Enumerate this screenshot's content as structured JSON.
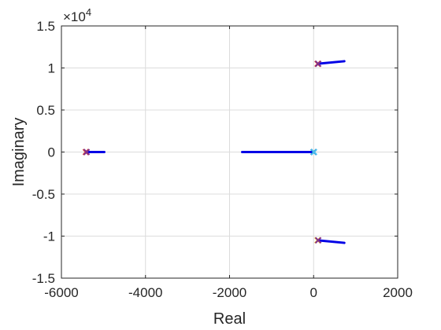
{
  "chart_data": {
    "type": "line",
    "title": "",
    "xlabel": "Real",
    "ylabel": "Imaginary",
    "xlim": [
      -6000,
      2000
    ],
    "ylim": [
      -1.5,
      1.5
    ],
    "y_exponent_label": "×10",
    "y_exponent_power": "4",
    "y_scale": 10000,
    "grid": true,
    "xticks": [
      -6000,
      -4000,
      -2000,
      0,
      2000
    ],
    "xtick_labels": [
      "-6000",
      "-4000",
      "-2000",
      "0",
      "2000"
    ],
    "yticks": [
      -1.5,
      -1,
      -0.5,
      0,
      0.5,
      1,
      1.5
    ],
    "ytick_labels": [
      "-1.5",
      "-1",
      "-0.5",
      "0",
      "0.5",
      "1",
      "1.5"
    ],
    "series": [
      {
        "color": "#0000e6",
        "points": [
          [
            -5420,
            0
          ],
          [
            -4980,
            0
          ]
        ]
      },
      {
        "color": "#0000e6",
        "points": [
          [
            -1700,
            0
          ],
          [
            0,
            0
          ]
        ]
      },
      {
        "color": "#0000e6",
        "points": [
          [
            100,
            1.05
          ],
          [
            730,
            1.08
          ]
        ]
      },
      {
        "color": "#0000e6",
        "points": [
          [
            100,
            -1.05
          ],
          [
            730,
            -1.08
          ]
        ]
      }
    ],
    "markers": [
      {
        "x": -5420,
        "y": 0,
        "color": "#d9432f"
      },
      {
        "x": -5400,
        "y": 0,
        "color": "#7e2f8e"
      },
      {
        "x": 0,
        "y": 0,
        "color": "#0072bd"
      },
      {
        "x": 10,
        "y": 0,
        "color": "#4dbeee"
      },
      {
        "x": 95,
        "y": 1.05,
        "color": "#d9432f"
      },
      {
        "x": 110,
        "y": 1.05,
        "color": "#7e2f8e"
      },
      {
        "x": 95,
        "y": -1.05,
        "color": "#edb120"
      },
      {
        "x": 110,
        "y": -1.05,
        "color": "#7e2f8e"
      }
    ]
  }
}
